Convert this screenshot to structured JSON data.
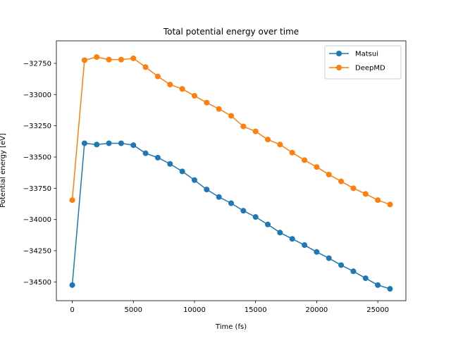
{
  "chart_data": {
    "type": "line",
    "title": "Total potential energy over time",
    "xlabel": "Time (fs)",
    "ylabel": "Potential energy [eV]",
    "xlim": [
      -1300,
      27300
    ],
    "ylim": [
      -34650,
      -32570
    ],
    "xticks": [
      0,
      5000,
      10000,
      15000,
      20000,
      25000
    ],
    "xtick_labels": [
      "0",
      "5000",
      "10000",
      "15000",
      "20000",
      "25000"
    ],
    "yticks": [
      -34500,
      -34250,
      -34000,
      -33750,
      -33500,
      -33250,
      -33000,
      -32750
    ],
    "ytick_labels": [
      "−34500",
      "−34250",
      "−34000",
      "−33750",
      "−33500",
      "−33250",
      "−33000",
      "−32750"
    ],
    "grid": false,
    "legend_position": "top-right",
    "x": [
      0,
      1000,
      2000,
      3000,
      4000,
      5000,
      6000,
      7000,
      8000,
      9000,
      10000,
      11000,
      12000,
      13000,
      14000,
      15000,
      16000,
      17000,
      18000,
      19000,
      20000,
      21000,
      22000,
      23000,
      24000,
      25000,
      26000
    ],
    "series": [
      {
        "name": "Matsui",
        "color": "#1f77b4",
        "values": [
          -34525,
          -33390,
          -33400,
          -33390,
          -33390,
          -33405,
          -33470,
          -33505,
          -33555,
          -33615,
          -33685,
          -33760,
          -33820,
          -33870,
          -33930,
          -33980,
          -34040,
          -34105,
          -34155,
          -34205,
          -34260,
          -34310,
          -34365,
          -34415,
          -34470,
          -34525,
          -34555
        ]
      },
      {
        "name": "DeepMD",
        "color": "#ff7f0e",
        "values": [
          -33845,
          -32725,
          -32700,
          -32720,
          -32720,
          -32710,
          -32780,
          -32855,
          -32920,
          -32955,
          -33010,
          -33065,
          -33115,
          -33170,
          -33255,
          -33295,
          -33360,
          -33400,
          -33465,
          -33525,
          -33580,
          -33640,
          -33695,
          -33750,
          -33795,
          -33845,
          -33880
        ]
      }
    ]
  }
}
